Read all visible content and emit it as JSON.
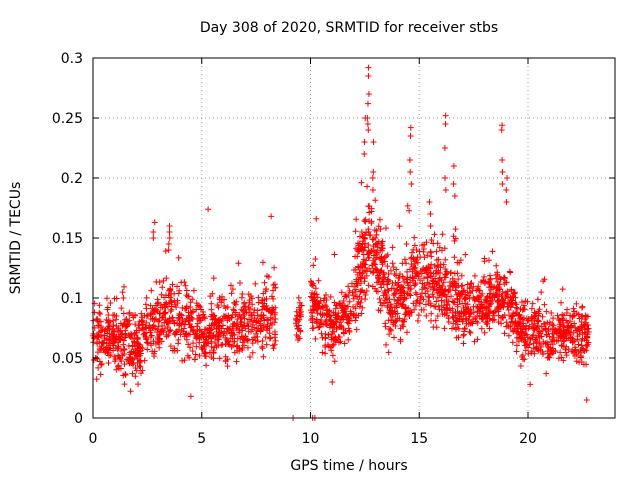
{
  "chart_data": {
    "type": "scatter",
    "title": "Day 308 of 2020, SRMTID for receiver stbs",
    "xlabel": "GPS time / hours",
    "ylabel": "SRMTID / TECUs",
    "xlim": [
      0,
      24
    ],
    "ylim": [
      0,
      0.3
    ],
    "x_ticks": [
      0,
      5,
      10,
      15,
      20
    ],
    "x_tick_labels": [
      "0",
      "5",
      "10",
      "15",
      "20"
    ],
    "y_ticks": [
      0,
      0.05,
      0.1,
      0.15,
      0.2,
      0.25,
      0.3
    ],
    "y_tick_labels": [
      "0",
      "0.05",
      "0.1",
      "0.15",
      "0.2",
      "0.25",
      "0.3"
    ],
    "grid": true,
    "legend": "none",
    "marker": "+",
    "color": "#ff0000",
    "series": [
      {
        "name": "SRMTID",
        "segments": [
          {
            "x_start": 0.0,
            "x_end": 8.4,
            "baseline": [
              [
                0,
                0.064
              ],
              [
                1,
                0.068
              ],
              [
                2,
                0.055
              ],
              [
                2.6,
                0.075
              ],
              [
                3.5,
                0.09
              ],
              [
                4.2,
                0.08
              ],
              [
                5,
                0.07
              ],
              [
                6,
                0.075
              ],
              [
                7,
                0.078
              ],
              [
                8,
                0.085
              ],
              [
                8.4,
                0.085
              ]
            ],
            "spread": 0.028,
            "count": 950
          },
          {
            "x_start": 9.3,
            "x_end": 9.6,
            "baseline": [
              [
                9.3,
                0.08
              ],
              [
                9.6,
                0.08
              ]
            ],
            "spread": 0.025,
            "count": 30
          },
          {
            "x_start": 10.0,
            "x_end": 12.0,
            "baseline": [
              [
                10,
                0.095
              ],
              [
                11,
                0.075
              ],
              [
                12,
                0.09
              ]
            ],
            "spread": 0.025,
            "count": 230
          },
          {
            "x_start": 12.0,
            "x_end": 13.6,
            "baseline": [
              [
                12,
                0.1
              ],
              [
                12.7,
                0.15
              ],
              [
                13.3,
                0.12
              ],
              [
                13.6,
                0.1
              ]
            ],
            "spread": 0.04,
            "count": 240
          },
          {
            "x_start": 13.6,
            "x_end": 17.0,
            "baseline": [
              [
                13.6,
                0.09
              ],
              [
                14.5,
                0.11
              ],
              [
                15.3,
                0.12
              ],
              [
                16,
                0.11
              ],
              [
                17,
                0.09
              ]
            ],
            "spread": 0.035,
            "count": 420
          },
          {
            "x_start": 17.0,
            "x_end": 22.8,
            "baseline": [
              [
                17,
                0.085
              ],
              [
                18,
                0.095
              ],
              [
                19,
                0.1
              ],
              [
                19.8,
                0.07
              ],
              [
                21,
                0.068
              ],
              [
                22,
                0.072
              ],
              [
                22.8,
                0.065
              ]
            ],
            "spread": 0.026,
            "count": 680
          }
        ],
        "spikes": [
          {
            "x": 3.5,
            "values": [
              0.16,
              0.155,
              0.15,
              0.145,
              0.14
            ]
          },
          {
            "x": 2.8,
            "values": [
              0.163,
              0.155,
              0.15
            ]
          },
          {
            "x": 5.3,
            "values": [
              0.174
            ]
          },
          {
            "x": 8.2,
            "values": [
              0.168
            ]
          },
          {
            "x": 10.3,
            "values": [
              0.166
            ]
          },
          {
            "x": 12.5,
            "values": [
              0.25,
              0.23,
              0.22
            ]
          },
          {
            "x": 12.65,
            "values": [
              0.292,
              0.285,
              0.27,
              0.262,
              0.25,
              0.245,
              0.24
            ]
          },
          {
            "x": 12.9,
            "values": [
              0.23,
              0.205,
              0.2,
              0.19
            ]
          },
          {
            "x": 14.6,
            "values": [
              0.242,
              0.235,
              0.215,
              0.205,
              0.195
            ]
          },
          {
            "x": 15.5,
            "values": [
              0.18,
              0.17,
              0.16
            ]
          },
          {
            "x": 16.2,
            "values": [
              0.252,
              0.245,
              0.225,
              0.2,
              0.19
            ]
          },
          {
            "x": 16.6,
            "values": [
              0.21,
              0.195,
              0.185
            ]
          },
          {
            "x": 18.8,
            "values": [
              0.244,
              0.24,
              0.215,
              0.205,
              0.195
            ]
          },
          {
            "x": 19.0,
            "values": [
              0.2,
              0.19,
              0.18
            ]
          }
        ],
        "lows": [
          {
            "x": 9.2,
            "values": [
              0.0
            ]
          },
          {
            "x": 10.1,
            "values": [
              0.0
            ]
          },
          {
            "x": 10.2,
            "values": [
              0.0
            ]
          },
          {
            "x": 22.7,
            "values": [
              0.015
            ]
          },
          {
            "x": 4.5,
            "values": [
              0.018
            ]
          },
          {
            "x": 20.1,
            "values": [
              0.028
            ]
          },
          {
            "x": 11.0,
            "values": [
              0.03
            ]
          }
        ]
      }
    ]
  }
}
